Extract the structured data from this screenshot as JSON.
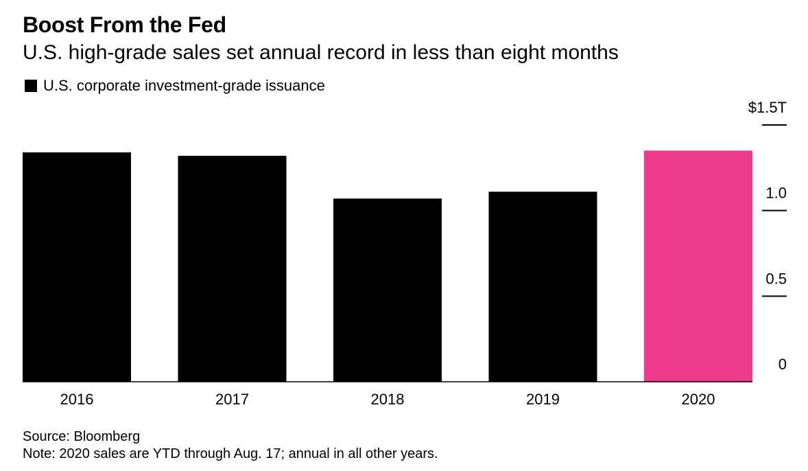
{
  "colors": {
    "bar_default": "#000000",
    "bar_highlight": "#ee3a8c",
    "text": "#000000",
    "background": "#ffffff"
  },
  "legend": {
    "label": "U.S. corporate investment-grade issuance",
    "swatch_color": "#000000"
  },
  "footer": {
    "source": "Source: Bloomberg",
    "note": "Note: 2020 sales are YTD through Aug. 17; annual in all other years."
  },
  "chart_data": {
    "type": "bar",
    "title": "Boost From the Fed",
    "subtitle": "U.S. high-grade sales set annual record in less than eight months",
    "categories": [
      "2016",
      "2017",
      "2018",
      "2019",
      "2020"
    ],
    "series": [
      {
        "name": "U.S. corporate investment-grade issuance",
        "values": [
          1.34,
          1.32,
          1.07,
          1.11,
          1.35
        ]
      }
    ],
    "highlight_category": "2020",
    "xlabel": "",
    "ylabel": "",
    "ylim": [
      0,
      1.5
    ],
    "y_ticks": [
      {
        "value": 0,
        "label": "0"
      },
      {
        "value": 0.5,
        "label": "0.5"
      },
      {
        "value": 1.0,
        "label": "1.0"
      },
      {
        "value": 1.5,
        "label": "$1.5T"
      }
    ],
    "y_axis_side": "right",
    "grid": false,
    "legend_position": "top-left"
  }
}
